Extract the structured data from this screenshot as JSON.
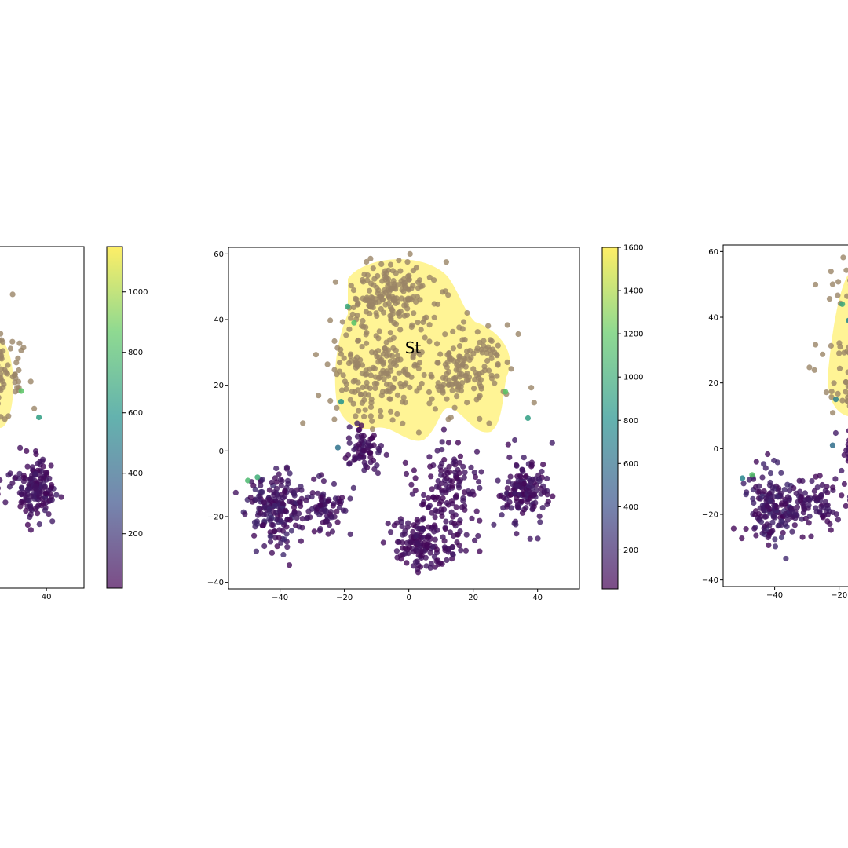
{
  "chart_data": [
    {
      "panel": "left",
      "type": "scatter",
      "xlim": [
        -55,
        55
      ],
      "ylim": [
        -42,
        62
      ],
      "x_ticks": [
        "40"
      ],
      "y_ticks": [],
      "highlight_region": true,
      "colorbar": {
        "min": 20,
        "max": 1150,
        "ticks": [
          "200",
          "400",
          "600",
          "800",
          "1000"
        ]
      },
      "colors": {
        "low": "#440154",
        "high": "#fde725",
        "region": "#fff38a"
      }
    },
    {
      "panel": "center",
      "type": "scatter",
      "xlim": [
        -56,
        53
      ],
      "ylim": [
        -42,
        62
      ],
      "x_ticks": [
        "−40",
        "−20",
        "0",
        "20",
        "40"
      ],
      "y_ticks": [
        "−40",
        "−20",
        "0",
        "20",
        "40",
        "60"
      ],
      "region_label": "St",
      "clusters": [
        {
          "name": "top-left lobe",
          "center": [
            -5,
            48
          ],
          "spread": [
            9,
            6
          ],
          "n": 180,
          "value_range": [
            1000,
            1500
          ]
        },
        {
          "name": "top-center lobe",
          "center": [
            -10,
            22
          ],
          "spread": [
            9,
            9
          ],
          "n": 180,
          "value_range": [
            1000,
            1500
          ]
        },
        {
          "name": "top-right lobe",
          "center": [
            16,
            25
          ],
          "spread": [
            9,
            8
          ],
          "n": 160,
          "value_range": [
            1000,
            1500
          ]
        },
        {
          "name": "far-left cluster",
          "center": [
            -41,
            -18
          ],
          "spread": [
            5,
            7
          ],
          "n": 170,
          "value_range": [
            20,
            200
          ]
        },
        {
          "name": "left-center cluster",
          "center": [
            -27,
            -17
          ],
          "spread": [
            6,
            5
          ],
          "n": 90,
          "value_range": [
            20,
            150
          ]
        },
        {
          "name": "upper-middle cluster",
          "center": [
            -14,
            0
          ],
          "spread": [
            4,
            4
          ],
          "n": 70,
          "value_range": [
            20,
            150
          ]
        },
        {
          "name": "bottom-center cluster",
          "center": [
            5,
            -28
          ],
          "spread": [
            7,
            5
          ],
          "n": 150,
          "value_range": [
            20,
            120
          ]
        },
        {
          "name": "middle-right cluster",
          "center": [
            12,
            -12
          ],
          "spread": [
            6,
            8
          ],
          "n": 130,
          "value_range": [
            20,
            120
          ]
        },
        {
          "name": "right cluster",
          "center": [
            36,
            -12
          ],
          "spread": [
            5,
            6
          ],
          "n": 150,
          "value_range": [
            20,
            150
          ]
        }
      ],
      "colorbar": {
        "min": 20,
        "max": 1600,
        "ticks": [
          "200",
          "400",
          "600",
          "800",
          "1000",
          "1200",
          "1400",
          "1600"
        ]
      },
      "colors": {
        "low": "#440154",
        "high": "#fde725",
        "region": "#fff38a"
      }
    },
    {
      "panel": "right",
      "type": "scatter",
      "xlim": [
        -56,
        53
      ],
      "ylim": [
        -42,
        62
      ],
      "x_ticks": [
        "−40",
        "−20"
      ],
      "y_ticks": [
        "−40",
        "−20",
        "0",
        "20",
        "40",
        "60"
      ],
      "highlight_region": true,
      "colors": {
        "low": "#440154",
        "high": "#fde725",
        "region": "#fff38a"
      }
    }
  ]
}
